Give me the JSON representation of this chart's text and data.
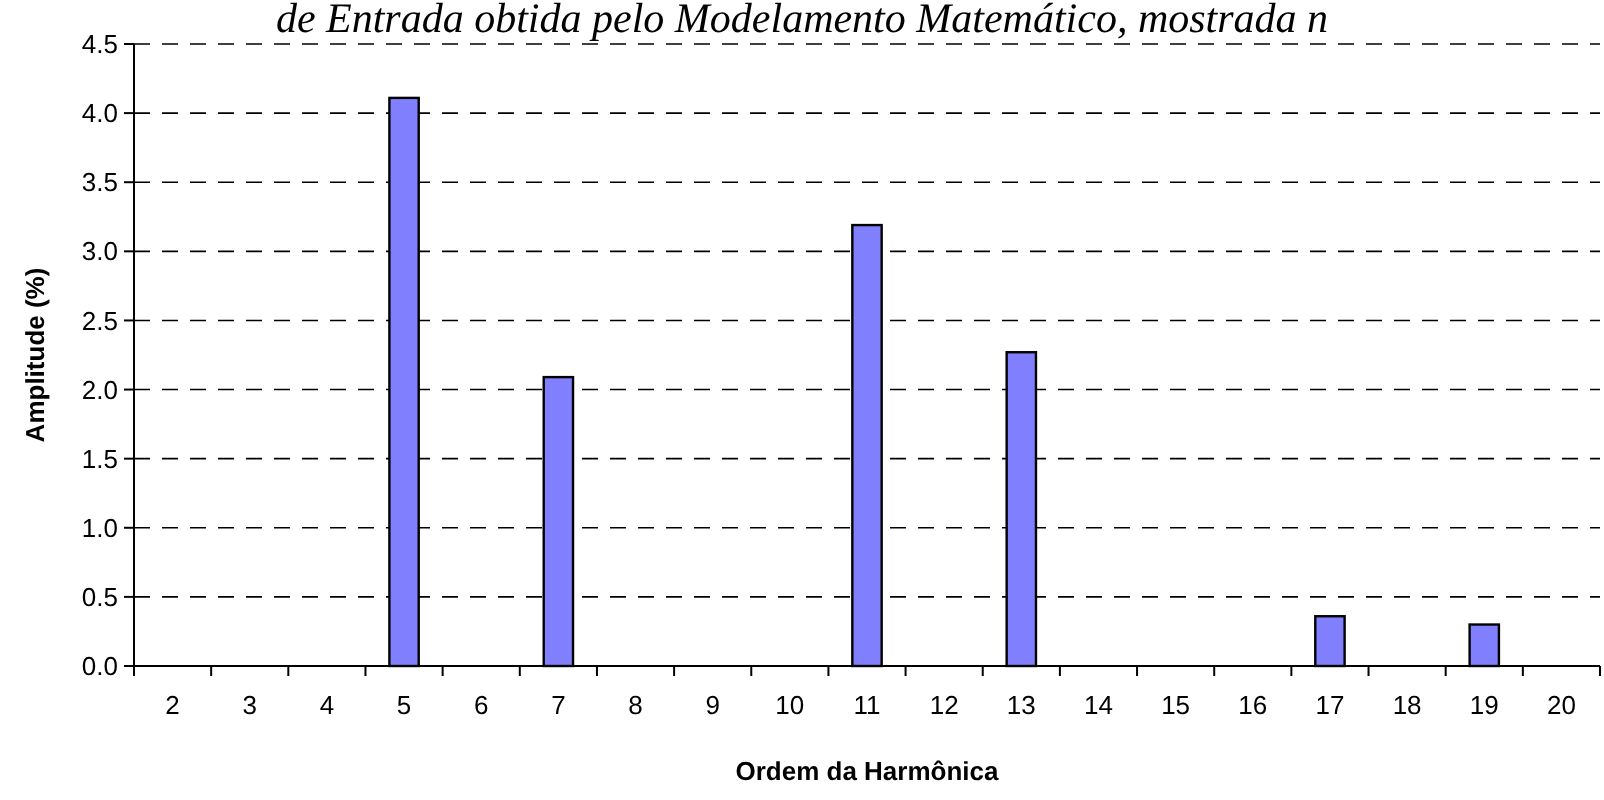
{
  "chart_data": {
    "type": "bar",
    "title": "de Entrada obtida pelo Modelamento Matemático, mostrada n",
    "xlabel": "Ordem da Harmônica",
    "ylabel": "Amplitude (%)",
    "categories": [
      "2",
      "3",
      "4",
      "5",
      "6",
      "7",
      "8",
      "9",
      "10",
      "11",
      "12",
      "13",
      "14",
      "15",
      "16",
      "17",
      "18",
      "19",
      "20"
    ],
    "values": [
      null,
      null,
      null,
      4.11,
      null,
      2.09,
      null,
      null,
      null,
      3.19,
      null,
      2.27,
      null,
      null,
      null,
      0.36,
      null,
      0.3,
      null
    ],
    "color": "#8080ff",
    "ylim": [
      0,
      4.5
    ],
    "yticks": [
      {
        "value": 0,
        "label": "0.0"
      },
      0.5,
      {
        "value": 1,
        "label": "1.0"
      },
      1.5,
      {
        "value": 2,
        "label": "2.0"
      },
      2.5,
      {
        "value": 3,
        "label": "3.0"
      },
      3.5,
      {
        "value": 4,
        "label": "4.0"
      },
      4.5
    ],
    "grid": "y"
  }
}
